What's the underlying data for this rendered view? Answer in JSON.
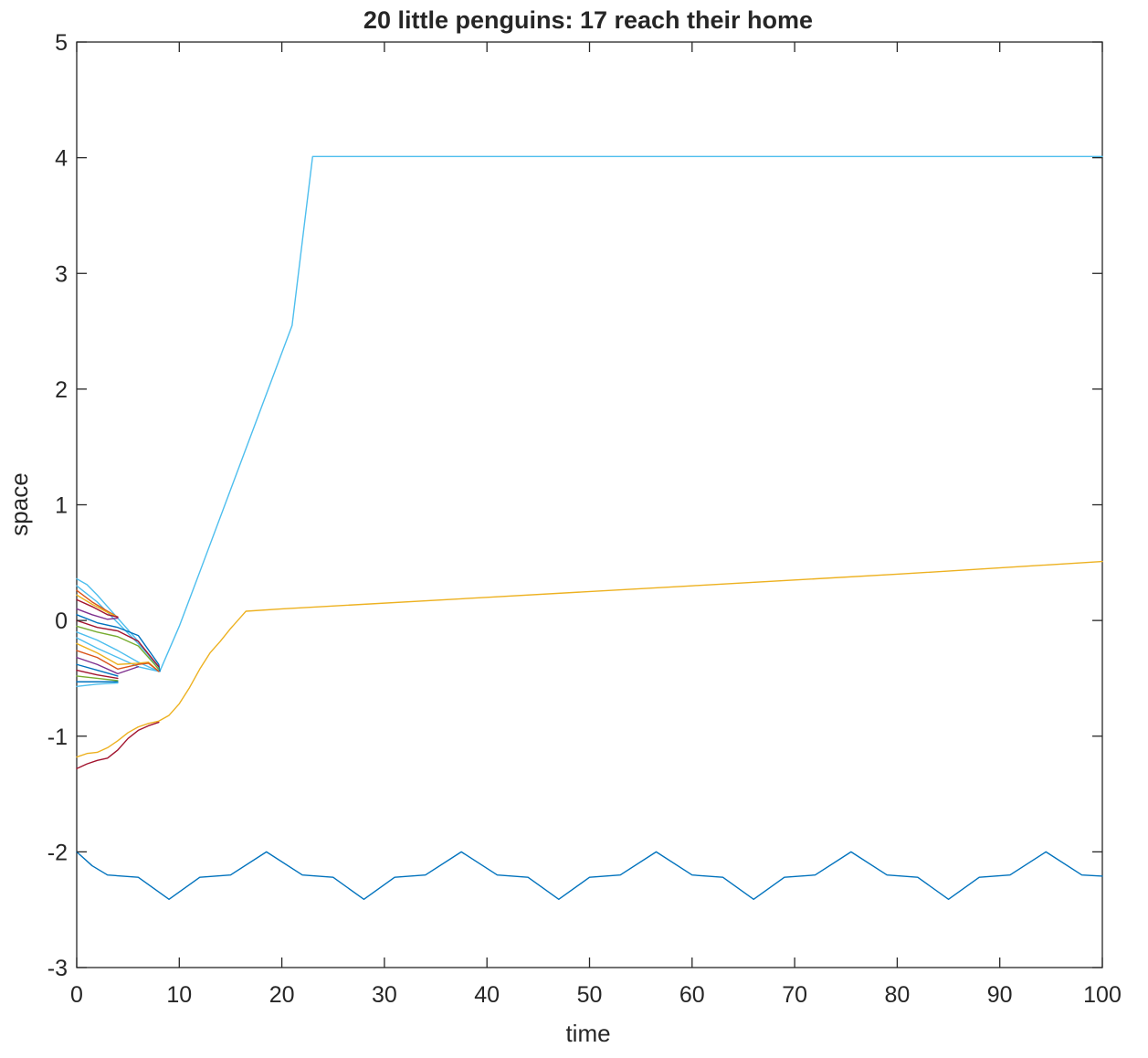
{
  "chart_data": {
    "type": "line",
    "title": "20 little penguins: 17 reach their home",
    "xlabel": "time",
    "ylabel": "space",
    "xlim": [
      0,
      100
    ],
    "ylim": [
      -3,
      5
    ],
    "xticks": [
      "0",
      "10",
      "20",
      "30",
      "40",
      "50",
      "60",
      "70",
      "80",
      "90",
      "100"
    ],
    "yticks": [
      "-3",
      "-2",
      "-1",
      "0",
      "1",
      "2",
      "3",
      "4",
      "5"
    ],
    "grid": false,
    "legend": "none",
    "series": [
      {
        "color": "#4dbeee",
        "points": [
          [
            0,
            0.36
          ],
          [
            1,
            0.31
          ],
          [
            2,
            0.22
          ],
          [
            3,
            0.12
          ],
          [
            4,
            0.02
          ],
          [
            5,
            -0.08
          ],
          [
            6,
            -0.18
          ],
          [
            7,
            -0.3
          ],
          [
            8.1,
            -0.44
          ],
          [
            10,
            -0.05
          ],
          [
            12,
            0.42
          ],
          [
            15,
            1.13
          ],
          [
            18,
            1.84
          ],
          [
            21,
            2.55
          ],
          [
            23,
            4.01
          ],
          [
            100,
            4.01
          ]
        ]
      },
      {
        "color": "#edb120",
        "points": [
          [
            0,
            -1.18
          ],
          [
            1,
            -1.15
          ],
          [
            2,
            -1.14
          ],
          [
            3,
            -1.1
          ],
          [
            4,
            -1.04
          ],
          [
            5,
            -0.97
          ],
          [
            6,
            -0.92
          ],
          [
            7,
            -0.89
          ],
          [
            8,
            -0.87
          ],
          [
            9,
            -0.82
          ],
          [
            10,
            -0.72
          ],
          [
            11,
            -0.58
          ],
          [
            12,
            -0.42
          ],
          [
            13,
            -0.28
          ],
          [
            14,
            -0.18
          ],
          [
            15,
            -0.07
          ],
          [
            16,
            0.03
          ],
          [
            16.5,
            0.08
          ],
          [
            20,
            0.1
          ],
          [
            40,
            0.2
          ],
          [
            60,
            0.3
          ],
          [
            80,
            0.4
          ],
          [
            100,
            0.51
          ]
        ]
      },
      {
        "color": "#a2142f",
        "points": [
          [
            0,
            -1.28
          ],
          [
            1,
            -1.24
          ],
          [
            2,
            -1.21
          ],
          [
            3,
            -1.19
          ],
          [
            4,
            -1.12
          ],
          [
            5,
            -1.02
          ],
          [
            6,
            -0.95
          ],
          [
            7,
            -0.91
          ],
          [
            8,
            -0.88
          ]
        ]
      },
      {
        "color": "#0072bd",
        "points": [
          [
            0,
            -2.0
          ],
          [
            1.5,
            -2.12
          ],
          [
            3,
            -2.2
          ],
          [
            6,
            -2.22
          ],
          [
            9,
            -2.41
          ],
          [
            12,
            -2.22
          ],
          [
            15,
            -2.2
          ],
          [
            18.5,
            -2.0
          ],
          [
            22,
            -2.2
          ],
          [
            25,
            -2.22
          ],
          [
            28,
            -2.41
          ],
          [
            31,
            -2.22
          ],
          [
            34,
            -2.2
          ],
          [
            37.5,
            -2.0
          ],
          [
            41,
            -2.2
          ],
          [
            44,
            -2.22
          ],
          [
            47,
            -2.41
          ],
          [
            50,
            -2.22
          ],
          [
            53,
            -2.2
          ],
          [
            56.5,
            -2.0
          ],
          [
            60,
            -2.2
          ],
          [
            63,
            -2.22
          ],
          [
            66,
            -2.41
          ],
          [
            69,
            -2.22
          ],
          [
            72,
            -2.2
          ],
          [
            75.5,
            -2.0
          ],
          [
            79,
            -2.2
          ],
          [
            82,
            -2.22
          ],
          [
            85,
            -2.41
          ],
          [
            88,
            -2.22
          ],
          [
            91,
            -2.2
          ],
          [
            94.5,
            -2.0
          ],
          [
            98,
            -2.2
          ],
          [
            100,
            -2.21
          ]
        ]
      },
      {
        "color": "#4dbeee",
        "points": [
          [
            0,
            0.3
          ],
          [
            2,
            0.16
          ],
          [
            4,
            -0.02
          ],
          [
            6,
            -0.2
          ],
          [
            8,
            -0.4
          ],
          [
            8.1,
            -0.44
          ]
        ]
      },
      {
        "color": "#d95319",
        "points": [
          [
            0,
            0.26
          ],
          [
            1.5,
            0.16
          ],
          [
            3,
            0.08
          ],
          [
            4,
            0.03
          ]
        ]
      },
      {
        "color": "#edb120",
        "points": [
          [
            0,
            0.22
          ],
          [
            1.5,
            0.14
          ],
          [
            3,
            0.07
          ],
          [
            4,
            0.03
          ]
        ]
      },
      {
        "color": "#a2142f",
        "points": [
          [
            0,
            0.18
          ],
          [
            1.5,
            0.12
          ],
          [
            3,
            0.05
          ],
          [
            4,
            0.03
          ]
        ]
      },
      {
        "color": "#7e2f8e",
        "points": [
          [
            0,
            0.1
          ],
          [
            1.5,
            0.05
          ],
          [
            3,
            0.01
          ],
          [
            4,
            0.02
          ]
        ]
      },
      {
        "color": "#0072bd",
        "points": [
          [
            0,
            0.05
          ],
          [
            2,
            -0.02
          ],
          [
            4,
            -0.06
          ],
          [
            6,
            -0.13
          ],
          [
            8,
            -0.38
          ],
          [
            8.1,
            -0.44
          ]
        ]
      },
      {
        "color": "#a2142f",
        "points": [
          [
            0,
            0.0
          ],
          [
            2,
            -0.06
          ],
          [
            4,
            -0.09
          ],
          [
            6,
            -0.18
          ],
          [
            8,
            -0.4
          ]
        ]
      },
      {
        "color": "#77ac30",
        "points": [
          [
            0,
            -0.05
          ],
          [
            2,
            -0.1
          ],
          [
            4,
            -0.14
          ],
          [
            6,
            -0.22
          ],
          [
            8,
            -0.42
          ]
        ]
      },
      {
        "color": "#4dbeee",
        "points": [
          [
            0,
            -0.1
          ],
          [
            2,
            -0.17
          ],
          [
            4,
            -0.26
          ],
          [
            6,
            -0.36
          ],
          [
            8,
            -0.44
          ]
        ]
      },
      {
        "color": "#4dbeee",
        "points": [
          [
            0,
            -0.15
          ],
          [
            2,
            -0.24
          ],
          [
            4,
            -0.32
          ],
          [
            6,
            -0.4
          ],
          [
            8,
            -0.44
          ]
        ]
      },
      {
        "color": "#edb120",
        "points": [
          [
            0,
            -0.2
          ],
          [
            2,
            -0.28
          ],
          [
            4,
            -0.38
          ],
          [
            6,
            -0.37
          ],
          [
            7,
            -0.36
          ],
          [
            8,
            -0.44
          ]
        ]
      },
      {
        "color": "#d95319",
        "points": [
          [
            0,
            -0.26
          ],
          [
            2,
            -0.32
          ],
          [
            4,
            -0.42
          ],
          [
            6,
            -0.38
          ],
          [
            7,
            -0.37
          ],
          [
            8,
            -0.44
          ]
        ]
      },
      {
        "color": "#7e2f8e",
        "points": [
          [
            0,
            -0.32
          ],
          [
            2,
            -0.38
          ],
          [
            4,
            -0.46
          ],
          [
            6,
            -0.4
          ]
        ]
      },
      {
        "color": "#0072bd",
        "points": [
          [
            0,
            -0.38
          ],
          [
            2,
            -0.43
          ],
          [
            4,
            -0.48
          ]
        ]
      },
      {
        "color": "#a2142f",
        "points": [
          [
            0,
            -0.43
          ],
          [
            2,
            -0.47
          ],
          [
            4,
            -0.5
          ]
        ]
      },
      {
        "color": "#77ac30",
        "points": [
          [
            0,
            -0.48
          ],
          [
            2,
            -0.5
          ],
          [
            4,
            -0.52
          ]
        ]
      },
      {
        "color": "#0072bd",
        "points": [
          [
            0,
            -0.53
          ],
          [
            2,
            -0.53
          ],
          [
            4,
            -0.53
          ]
        ]
      },
      {
        "color": "#4dbeee",
        "points": [
          [
            0,
            -0.57
          ],
          [
            2,
            -0.55
          ],
          [
            4,
            -0.54
          ]
        ]
      }
    ]
  }
}
